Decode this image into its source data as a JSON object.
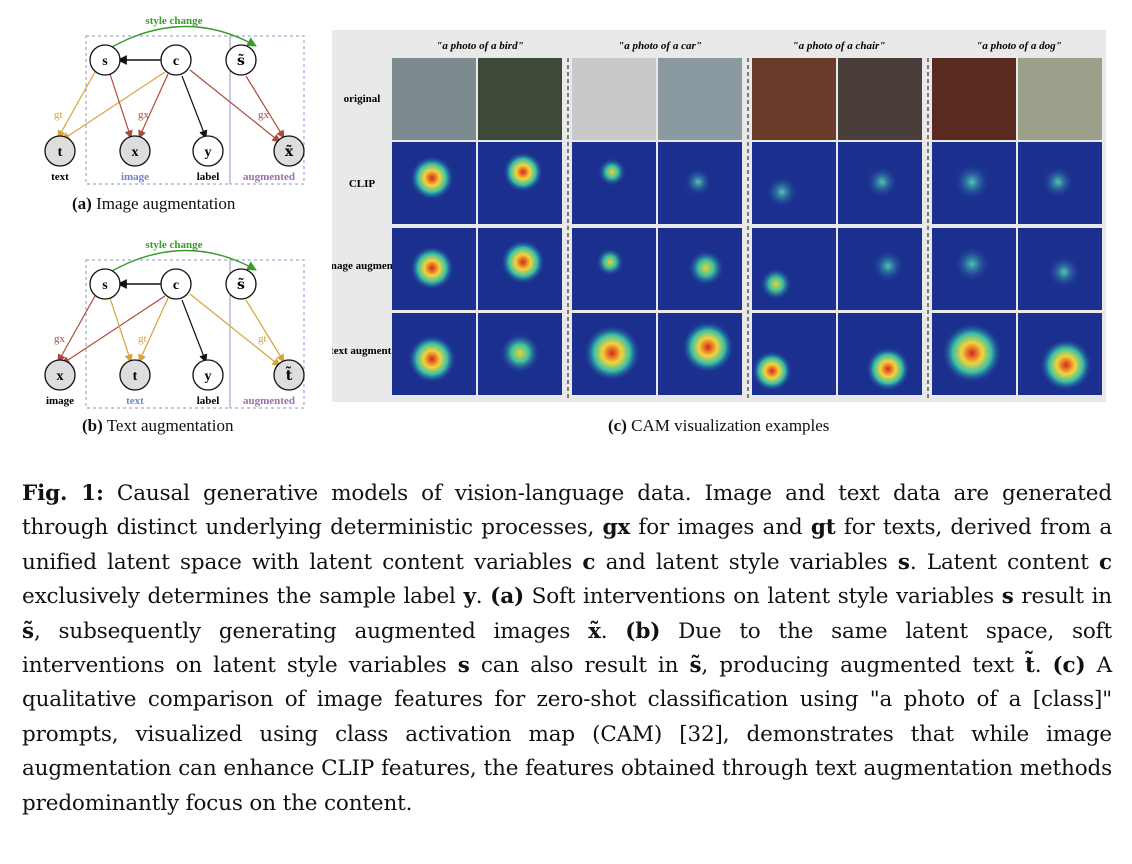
{
  "diagrams": {
    "a": {
      "style_change": "style change",
      "nodes": {
        "s": "s",
        "c": "c",
        "s_tilde": "s̃",
        "t": "t",
        "x": "x",
        "y": "y",
        "x_tilde": "x̃"
      },
      "edge_labels": {
        "gt": "gt",
        "gx_1": "gx",
        "gx_2": "gx"
      },
      "labels": {
        "text": "text",
        "image": "image",
        "label": "label",
        "augmented": "augmented"
      },
      "caption_tag": "(a)",
      "caption_text": "Image augmentation"
    },
    "b": {
      "style_change": "style change",
      "nodes": {
        "s": "s",
        "c": "c",
        "s_tilde": "s̃",
        "x": "x",
        "t": "t",
        "y": "y",
        "t_tilde": "t̃"
      },
      "edge_labels": {
        "gx": "gx",
        "gt_1": "gt",
        "gt_2": "gt"
      },
      "labels": {
        "image": "image",
        "text": "text",
        "label": "label",
        "augmented": "augmented"
      },
      "caption_tag": "(b)",
      "caption_text": "Text augmentation"
    }
  },
  "cam": {
    "columns": [
      "\"a photo of a bird\"",
      "\"a photo of a car\"",
      "\"a photo of a chair\"",
      "\"a photo of a dog\""
    ],
    "rows": [
      "original",
      "CLIP",
      "image augment.",
      "text augment."
    ],
    "caption_tag": "(c)",
    "caption_text": "CAM visualization examples"
  },
  "caption": {
    "label": "Fig. 1:",
    "t1": " Causal generative models of vision-language data. Image and text data are generated through distinct underlying deterministic processes, ",
    "gx": "gx",
    "t2": " for images and ",
    "gt": "gt",
    "t3": " for texts, derived from a unified latent space with latent content variables ",
    "c1": "c",
    "t4": " and latent style variables ",
    "s1": "s",
    "t5": ". Latent content ",
    "c2": "c",
    "t6": " exclusively determines the sample label ",
    "y": "y",
    "t7": ". ",
    "a": "(a)",
    "t8": " Soft interventions on latent style variables ",
    "s2": "s",
    "t9": " result in ",
    "st1": "s̃",
    "t10": ", subsequently generating augmented images ",
    "xt": "x̃",
    "t11": ". ",
    "b": "(b)",
    "t12": " Due to the same latent space, soft interventions on latent style variables ",
    "s3": "s",
    "t13": " can also result in ",
    "st2": "s̃",
    "t14": ", producing augmented text ",
    "tt": "t̃",
    "t15": ". ",
    "c": "(c)",
    "t16": " A qualitative comparison of image features for zero-shot classification using \"a photo of a [class]\" prompts, visualized using class activation map (CAM) [32], demonstrates that while image augmentation can enhance CLIP features, the features obtained through text augmentation methods predominantly focus on the content."
  }
}
